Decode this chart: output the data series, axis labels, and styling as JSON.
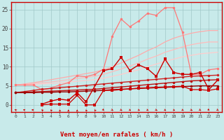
{
  "x": [
    0,
    1,
    2,
    3,
    4,
    5,
    6,
    7,
    8,
    9,
    10,
    11,
    12,
    13,
    14,
    15,
    16,
    17,
    18,
    19,
    20,
    21,
    22,
    23
  ],
  "background_color": "#c8eaea",
  "grid_color": "#a0c8c8",
  "xlabel": "Vent moyen/en rafales ( km/h )",
  "yticks": [
    0,
    5,
    10,
    15,
    20,
    25
  ],
  "ylim": [
    -1.8,
    27
  ],
  "xlim": [
    -0.5,
    23.5
  ],
  "line_pink_jagged": [
    5.2,
    5.2,
    5.2,
    4.0,
    4.4,
    5.2,
    5.8,
    7.6,
    7.4,
    8.0,
    9.4,
    18.0,
    22.5,
    20.5,
    22.0,
    24.0,
    23.5,
    25.5,
    25.5,
    19.0,
    8.0,
    8.0,
    9.2,
    9.5
  ],
  "line_pink_upper": [
    5.2,
    5.5,
    5.8,
    6.2,
    6.6,
    7.0,
    7.4,
    7.8,
    8.2,
    8.6,
    9.2,
    10.0,
    11.0,
    12.0,
    13.0,
    14.2,
    15.2,
    16.5,
    17.5,
    18.2,
    18.8,
    19.2,
    19.5,
    19.5
  ],
  "line_pink_mid": [
    5.2,
    5.4,
    5.6,
    5.8,
    6.0,
    6.3,
    6.6,
    6.9,
    7.2,
    7.5,
    8.0,
    8.7,
    9.4,
    10.2,
    11.0,
    12.0,
    12.8,
    13.8,
    14.5,
    15.2,
    15.8,
    16.2,
    16.5,
    16.5
  ],
  "line_pink_low": [
    5.2,
    5.3,
    5.4,
    5.5,
    5.6,
    5.8,
    6.0,
    6.2,
    6.4,
    6.6,
    7.0,
    7.5,
    8.0,
    8.6,
    9.2,
    10.0,
    10.7,
    11.4,
    12.0,
    12.6,
    13.0,
    13.4,
    13.6,
    13.8
  ],
  "line_red_upper": [
    3.2,
    3.5,
    3.8,
    4.1,
    4.3,
    4.5,
    4.7,
    4.9,
    5.1,
    5.3,
    5.5,
    5.7,
    5.9,
    6.1,
    6.3,
    6.5,
    6.7,
    6.9,
    7.1,
    7.3,
    7.5,
    7.6,
    7.7,
    7.8
  ],
  "line_red_mid": [
    3.2,
    3.3,
    3.4,
    3.5,
    3.6,
    3.7,
    3.8,
    3.9,
    4.0,
    4.1,
    4.3,
    4.5,
    4.7,
    4.9,
    5.1,
    5.3,
    5.5,
    5.7,
    5.9,
    6.1,
    6.3,
    6.4,
    6.5,
    6.6
  ],
  "line_red_flat": [
    3.2,
    3.2,
    3.2,
    3.3,
    3.3,
    3.4,
    3.4,
    3.5,
    3.6,
    3.7,
    3.8,
    4.0,
    4.1,
    4.2,
    4.3,
    4.4,
    4.5,
    4.6,
    4.7,
    4.8,
    4.9,
    5.0,
    5.0,
    5.0
  ],
  "line_dark_jagged_x": [
    3,
    4,
    5,
    6,
    7,
    8,
    10,
    11,
    12,
    13,
    14,
    15,
    16,
    17,
    18,
    19,
    20,
    21,
    22,
    23
  ],
  "line_dark_jagged_y": [
    0.2,
    1.0,
    1.5,
    1.2,
    3.2,
    0.8,
    9.0,
    9.5,
    12.5,
    9.0,
    10.5,
    9.5,
    7.5,
    12.0,
    8.5,
    8.0,
    8.0,
    8.5,
    4.0,
    6.5
  ],
  "line_low_scatter_x": [
    3,
    4,
    5,
    6,
    7,
    8,
    9,
    10,
    11,
    12,
    13,
    14,
    15,
    16,
    17,
    18,
    19,
    20,
    21,
    22,
    23
  ],
  "line_low_scatter_y": [
    0.0,
    0.2,
    0.2,
    0.2,
    2.5,
    0.0,
    0.0,
    3.8,
    3.8,
    4.0,
    4.2,
    4.4,
    4.5,
    4.6,
    4.7,
    4.8,
    4.9,
    4.0,
    4.0,
    3.8,
    4.2
  ],
  "pink_jagged_color": "#ff7777",
  "pink_upper_color": "#ffaaaa",
  "pink_mid_color": "#ffbbbb",
  "pink_low_color": "#ffcccc",
  "red_upper_color": "#cc2222",
  "red_mid_color": "#bb1111",
  "red_flat_color": "#990000",
  "dark_jagged_color": "#cc0000",
  "low_scatter_color": "#cc0000",
  "xlabel_color": "#cc0000",
  "spine_color": "#cc0000",
  "arrow_color": "#cc0000",
  "arrow_angles": [
    210,
    225,
    240,
    200,
    195,
    185,
    180,
    180,
    190,
    195,
    20,
    25,
    30,
    35,
    40,
    35,
    30,
    35,
    40,
    35,
    30,
    25,
    20,
    25
  ]
}
